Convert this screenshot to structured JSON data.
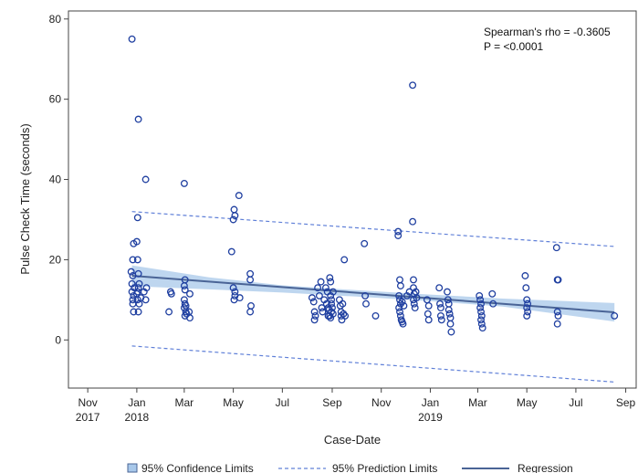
{
  "chart_data": {
    "type": "scatter",
    "xlabel": "Case-Date",
    "ylabel": "Pulse Check Time (seconds)",
    "ylim": [
      -12,
      82
    ],
    "xlim": [
      "2017-10-08",
      "2019-09-14"
    ],
    "x_ticks": [
      {
        "date": "2017-11-01",
        "label": "Nov",
        "label2": "2017"
      },
      {
        "date": "2018-01-01",
        "label": "Jan",
        "label2": "2018"
      },
      {
        "date": "2018-03-01",
        "label": "Mar",
        "label2": ""
      },
      {
        "date": "2018-05-01",
        "label": "May",
        "label2": ""
      },
      {
        "date": "2018-07-01",
        "label": "Jul",
        "label2": ""
      },
      {
        "date": "2018-09-01",
        "label": "Sep",
        "label2": ""
      },
      {
        "date": "2018-11-01",
        "label": "Nov",
        "label2": ""
      },
      {
        "date": "2019-01-01",
        "label": "Jan",
        "label2": "2019"
      },
      {
        "date": "2019-03-01",
        "label": "Mar",
        "label2": ""
      },
      {
        "date": "2019-05-01",
        "label": "May",
        "label2": ""
      },
      {
        "date": "2019-07-01",
        "label": "Jul",
        "label2": ""
      },
      {
        "date": "2019-09-01",
        "label": "Sep",
        "label2": ""
      }
    ],
    "y_ticks": [
      0,
      20,
      40,
      60,
      80
    ],
    "annotations": [
      "Spearman's rho = -0.3605",
      "P = <0.0001"
    ],
    "regression": {
      "x": [
        "2017-12-26",
        "2019-08-18"
      ],
      "y": [
        16.0,
        6.9
      ]
    },
    "confidence_limits": {
      "x": [
        "2017-12-26",
        "2018-04-01",
        "2018-07-01",
        "2018-10-01",
        "2019-01-01",
        "2019-04-01",
        "2019-08-18"
      ],
      "upper": [
        18.6,
        15.6,
        13.6,
        12.4,
        11.3,
        10.3,
        9.2
      ],
      "lower": [
        13.4,
        12.6,
        11.8,
        10.8,
        9.7,
        8.3,
        4.6
      ]
    },
    "prediction_limits": {
      "x": [
        "2017-12-26",
        "2019-08-18"
      ],
      "upper": [
        32,
        23.3
      ],
      "lower": [
        -1.5,
        -10.5
      ]
    },
    "legend": {
      "placement": "bottom",
      "items": [
        "95% Confidence Limits",
        "95% Prediction Limits",
        "Regression"
      ]
    },
    "colors": {
      "point": "#1f3fa0",
      "regression": "#4a6496",
      "band": "#a8c8ea",
      "prediction": "#6080d8"
    },
    "points": [
      [
        "2017-12-26",
        75
      ],
      [
        "2017-12-27",
        20
      ],
      [
        "2017-12-25",
        17
      ],
      [
        "2017-12-27",
        16
      ],
      [
        "2017-12-28",
        24
      ],
      [
        "2017-12-26",
        12
      ],
      [
        "2017-12-27",
        10
      ],
      [
        "2017-12-28",
        11
      ],
      [
        "2017-12-26",
        14
      ],
      [
        "2017-12-27",
        9
      ],
      [
        "2017-12-28",
        7
      ],
      [
        "2017-12-29",
        13
      ],
      [
        "2018-01-01",
        24.5
      ],
      [
        "2018-01-02",
        30.5
      ],
      [
        "2018-01-03",
        55
      ],
      [
        "2018-01-02",
        20
      ],
      [
        "2018-01-03",
        16.5
      ],
      [
        "2018-01-01",
        11.5
      ],
      [
        "2018-01-02",
        10
      ],
      [
        "2018-01-03",
        13
      ],
      [
        "2018-01-04",
        14
      ],
      [
        "2018-01-02",
        12
      ],
      [
        "2018-01-03",
        7
      ],
      [
        "2018-01-04",
        9
      ],
      [
        "2018-01-06",
        10.5
      ],
      [
        "2018-01-10",
        12
      ],
      [
        "2018-01-12",
        40
      ],
      [
        "2018-01-12",
        10
      ],
      [
        "2018-01-13",
        13
      ],
      [
        "2018-02-10",
        7
      ],
      [
        "2018-02-12",
        12
      ],
      [
        "2018-02-13",
        11.5
      ],
      [
        "2018-03-01",
        39
      ],
      [
        "2018-03-02",
        15
      ],
      [
        "2018-03-01",
        13.5
      ],
      [
        "2018-03-02",
        12.5
      ],
      [
        "2018-03-01",
        10
      ],
      [
        "2018-03-02",
        9
      ],
      [
        "2018-03-01",
        8
      ],
      [
        "2018-03-03",
        7
      ],
      [
        "2018-03-02",
        6
      ],
      [
        "2018-03-04",
        6.5
      ],
      [
        "2018-03-03",
        8.5
      ],
      [
        "2018-03-07",
        7
      ],
      [
        "2018-03-08",
        5.5
      ],
      [
        "2018-03-08",
        11.5
      ],
      [
        "2018-04-29",
        22
      ],
      [
        "2018-05-01",
        30
      ],
      [
        "2018-05-02",
        32.5
      ],
      [
        "2018-05-03",
        31
      ],
      [
        "2018-05-01",
        13
      ],
      [
        "2018-05-03",
        11
      ],
      [
        "2018-05-02",
        10
      ],
      [
        "2018-05-08",
        36
      ],
      [
        "2018-05-09",
        10.5
      ],
      [
        "2018-05-03",
        12
      ],
      [
        "2018-05-22",
        16.5
      ],
      [
        "2018-05-22",
        15
      ],
      [
        "2018-05-23",
        8.5
      ],
      [
        "2018-05-22",
        7
      ],
      [
        "2018-08-07",
        10.5
      ],
      [
        "2018-08-09",
        9.5
      ],
      [
        "2018-08-10",
        7
      ],
      [
        "2018-08-11",
        6
      ],
      [
        "2018-08-10",
        5
      ],
      [
        "2018-08-14",
        13
      ],
      [
        "2018-08-16",
        11
      ],
      [
        "2018-08-18",
        14.5
      ],
      [
        "2018-08-19",
        8
      ],
      [
        "2018-08-20",
        7
      ],
      [
        "2018-08-22",
        10
      ],
      [
        "2018-08-24",
        13
      ],
      [
        "2018-08-26",
        12
      ],
      [
        "2018-08-25",
        9
      ],
      [
        "2018-08-27",
        8
      ],
      [
        "2018-08-27",
        6
      ],
      [
        "2018-08-28",
        7.5
      ],
      [
        "2018-08-29",
        15.5
      ],
      [
        "2018-08-30",
        14.5
      ],
      [
        "2018-08-30",
        11
      ],
      [
        "2018-08-31",
        9
      ],
      [
        "2018-08-31",
        7
      ],
      [
        "2018-08-29",
        6
      ],
      [
        "2018-08-30",
        5.5
      ],
      [
        "2018-08-31",
        10
      ],
      [
        "2018-09-01",
        8
      ],
      [
        "2018-09-02",
        12
      ],
      [
        "2018-09-02",
        6.5
      ],
      [
        "2018-09-10",
        10
      ],
      [
        "2018-09-11",
        8.5
      ],
      [
        "2018-09-12",
        7
      ],
      [
        "2018-09-12",
        6
      ],
      [
        "2018-09-13",
        5
      ],
      [
        "2018-09-14",
        9
      ],
      [
        "2018-09-15",
        6.5
      ],
      [
        "2018-09-16",
        20
      ],
      [
        "2018-09-17",
        6
      ],
      [
        "2018-10-11",
        24
      ],
      [
        "2018-10-12",
        11
      ],
      [
        "2018-10-13",
        9
      ],
      [
        "2018-10-25",
        6
      ],
      [
        "2018-11-22",
        27
      ],
      [
        "2018-11-22",
        26
      ],
      [
        "2018-11-24",
        15
      ],
      [
        "2018-11-25",
        13.5
      ],
      [
        "2018-11-23",
        11
      ],
      [
        "2018-11-24",
        10
      ],
      [
        "2018-11-25",
        9
      ],
      [
        "2018-11-23",
        8
      ],
      [
        "2018-11-24",
        7
      ],
      [
        "2018-11-25",
        6
      ],
      [
        "2018-11-26",
        5
      ],
      [
        "2018-11-27",
        4.5
      ],
      [
        "2018-11-28",
        4
      ],
      [
        "2018-11-29",
        8.5
      ],
      [
        "2018-11-27",
        9.5
      ],
      [
        "2018-12-03",
        11
      ],
      [
        "2018-12-06",
        12
      ],
      [
        "2018-12-10",
        63.5
      ],
      [
        "2018-12-10",
        29.5
      ],
      [
        "2018-12-11",
        15
      ],
      [
        "2018-12-11",
        13
      ],
      [
        "2018-12-12",
        11.5
      ],
      [
        "2018-12-11",
        10
      ],
      [
        "2018-12-12",
        9
      ],
      [
        "2018-12-13",
        8
      ],
      [
        "2018-12-14",
        12
      ],
      [
        "2018-12-15",
        10.5
      ],
      [
        "2018-12-28",
        10
      ],
      [
        "2018-12-30",
        8.5
      ],
      [
        "2018-12-29",
        6.5
      ],
      [
        "2018-12-30",
        5
      ],
      [
        "2019-01-12",
        13
      ],
      [
        "2019-01-13",
        9
      ],
      [
        "2019-01-14",
        8
      ],
      [
        "2019-01-14",
        6
      ],
      [
        "2019-01-15",
        5
      ],
      [
        "2019-01-22",
        12
      ],
      [
        "2019-01-23",
        10
      ],
      [
        "2019-01-24",
        9
      ],
      [
        "2019-01-24",
        7.5
      ],
      [
        "2019-01-25",
        6.5
      ],
      [
        "2019-01-26",
        5.5
      ],
      [
        "2019-01-26",
        4
      ],
      [
        "2019-01-27",
        2
      ],
      [
        "2019-03-03",
        11
      ],
      [
        "2019-03-04",
        10
      ],
      [
        "2019-03-05",
        9
      ],
      [
        "2019-03-04",
        8
      ],
      [
        "2019-03-05",
        7
      ],
      [
        "2019-03-06",
        6
      ],
      [
        "2019-03-05",
        5
      ],
      [
        "2019-03-06",
        4
      ],
      [
        "2019-03-07",
        3
      ],
      [
        "2019-03-19",
        11.5
      ],
      [
        "2019-03-20",
        9
      ],
      [
        "2019-04-29",
        16
      ],
      [
        "2019-04-30",
        13
      ],
      [
        "2019-05-01",
        10
      ],
      [
        "2019-05-02",
        9
      ],
      [
        "2019-05-01",
        8
      ],
      [
        "2019-05-02",
        7
      ],
      [
        "2019-05-01",
        6
      ],
      [
        "2019-06-07",
        23
      ],
      [
        "2019-06-08",
        15
      ],
      [
        "2019-06-09",
        15
      ],
      [
        "2019-06-08",
        7
      ],
      [
        "2019-06-09",
        6
      ],
      [
        "2019-06-08",
        4
      ],
      [
        "2019-08-18",
        6
      ]
    ]
  }
}
